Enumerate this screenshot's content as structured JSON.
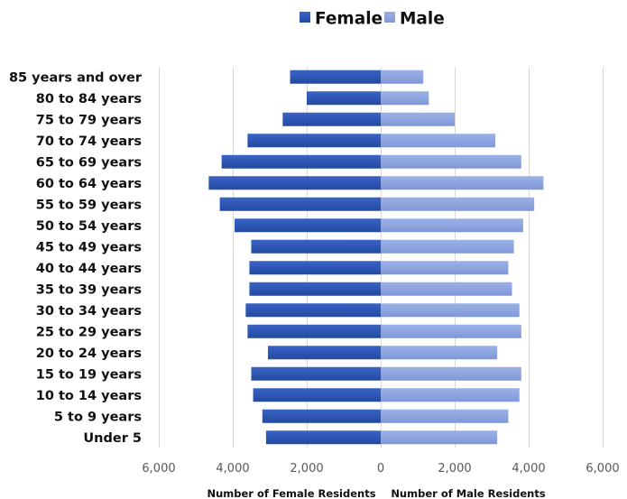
{
  "chart_data": {
    "type": "bar",
    "orientation": "horizontal",
    "subtype": "population-pyramid",
    "categories": [
      "85 years and over",
      "80 to 84 years",
      "75 to 79 years",
      "70 to 74 years",
      "65 to 69 years",
      "60 to 64 years",
      "55 to 59 years",
      "50 to 54 years",
      "45 to 49 years",
      "40 to 44 years",
      "35 to 39 years",
      "30 to 34 years",
      "25 to 29 years",
      "20 to 24 years",
      "15 to 19 years",
      "10 to 14 years",
      "5 to 9 years",
      "Under 5"
    ],
    "series": [
      {
        "name": "Female",
        "color": "#2e56b5",
        "side": "left",
        "values": [
          2450,
          2000,
          2650,
          3600,
          4300,
          4650,
          4350,
          3950,
          3500,
          3550,
          3550,
          3650,
          3600,
          3050,
          3500,
          3450,
          3200,
          3100
        ]
      },
      {
        "name": "Male",
        "color": "#8ea5e0",
        "side": "right",
        "values": [
          1150,
          1300,
          2000,
          3100,
          3800,
          4400,
          4150,
          3850,
          3600,
          3450,
          3550,
          3750,
          3800,
          3150,
          3800,
          3750,
          3450,
          3150
        ]
      }
    ],
    "xlim": [
      -6000,
      6000
    ],
    "ticks": [
      -6000,
      -4000,
      -2000,
      0,
      2000,
      4000,
      6000
    ],
    "tick_labels": [
      "6,000",
      "4,000",
      "2,000",
      "0",
      "2,000",
      "4,000",
      "6,000"
    ],
    "xlabel_left": "Number of Female Residents",
    "xlabel_right": "Number of Male Residents",
    "grid": true,
    "legend": {
      "position": "top-center",
      "entries": [
        "Female",
        "Male"
      ]
    }
  }
}
